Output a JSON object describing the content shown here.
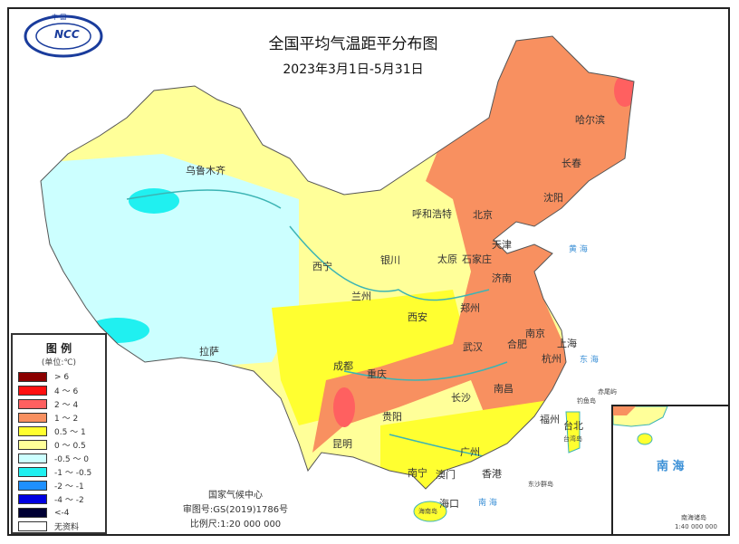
{
  "header": {
    "title": "全国平均气温距平分布图",
    "subtitle": "2023年3月1日-5月31日",
    "logo_text": "NCC",
    "logo_top": "中 国"
  },
  "legend": {
    "title": "图 例",
    "unit": "(单位:℃)",
    "items": [
      {
        "label": "> 6",
        "color": "#8b0000"
      },
      {
        "label": "4 ～ 6",
        "color": "#ff1010"
      },
      {
        "label": "2 ～ 4",
        "color": "#ff6060"
      },
      {
        "label": "1 ～ 2",
        "color": "#f89060"
      },
      {
        "label": "0.5 ～ 1",
        "color": "#ffff30"
      },
      {
        "label": "0 ～ 0.5",
        "color": "#ffff99"
      },
      {
        "label": "-0.5 ～ 0",
        "color": "#ccffff"
      },
      {
        "label": "-1 ～ -0.5",
        "color": "#20f0f0"
      },
      {
        "label": "-2 ～ -1",
        "color": "#1e90ff"
      },
      {
        "label": "-4 ～ -2",
        "color": "#0000e0"
      },
      {
        "label": "<-4",
        "color": "#000033"
      },
      {
        "label": "无资料",
        "color": "#ffffff"
      }
    ]
  },
  "footer": {
    "agency": "国家气候中心",
    "approval": "审图号:GS(2019)1786号",
    "scale": "比例尺:1:20 000 000"
  },
  "cities": [
    "乌鲁木齐",
    "拉萨",
    "西宁",
    "兰州",
    "银川",
    "呼和浩特",
    "北京",
    "天津",
    "石家庄",
    "太原",
    "济南",
    "郑州",
    "西安",
    "成都",
    "重庆",
    "武汉",
    "合肥",
    "南京",
    "上海",
    "杭州",
    "长沙",
    "南昌",
    "贵阳",
    "昆明",
    "福州",
    "台北",
    "广州",
    "南宁",
    "澳门",
    "香港",
    "海口",
    "哈尔滨",
    "长春",
    "沈阳"
  ],
  "seas": [
    "黄 海",
    "东 海",
    "南 海"
  ],
  "islands": [
    "钓鱼岛",
    "赤尾屿",
    "台湾岛",
    "东沙群岛",
    "海南岛"
  ],
  "inset": {
    "sea": "南 海",
    "label": "南海诸岛",
    "scale": "1:40 000 000"
  }
}
